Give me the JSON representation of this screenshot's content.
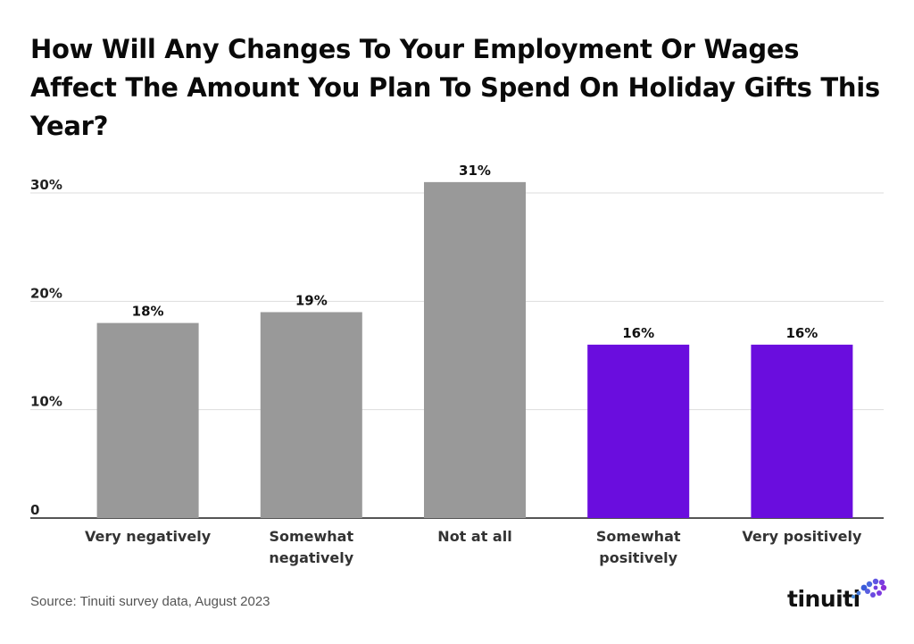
{
  "title": "How Will Any Changes To Your Employment Or Wages Affect The Amount You Plan To Spend On Holiday Gifts This Year?",
  "source": "Source: Tinuiti survey data, August 2023",
  "logo": {
    "text": "tinuiti"
  },
  "colors": {
    "negative": "#999999",
    "positive": "#6a0dde",
    "grid": "#dddddd",
    "axis": "#555555"
  },
  "chart_data": {
    "type": "bar",
    "title": "How Will Any Changes To Your Employment Or Wages Affect The Amount You Plan To Spend On Holiday Gifts This Year?",
    "xlabel": "",
    "ylabel": "",
    "ylim": [
      0,
      30
    ],
    "yticks": [
      {
        "value": 0,
        "label": "0"
      },
      {
        "value": 10,
        "label": "10%"
      },
      {
        "value": 20,
        "label": "20%"
      },
      {
        "value": 30,
        "label": "30%"
      }
    ],
    "categories": [
      [
        "Very negatively"
      ],
      [
        "Somewhat",
        "negatively"
      ],
      [
        "Not at all"
      ],
      [
        "Somewhat",
        "positively"
      ],
      [
        "Very positively"
      ]
    ],
    "values": [
      18,
      19,
      31,
      16,
      16
    ],
    "labels": [
      "18%",
      "19%",
      "31%",
      "16%",
      "16%"
    ],
    "bar_colors": [
      "#999999",
      "#999999",
      "#999999",
      "#6a0dde",
      "#6a0dde"
    ]
  }
}
